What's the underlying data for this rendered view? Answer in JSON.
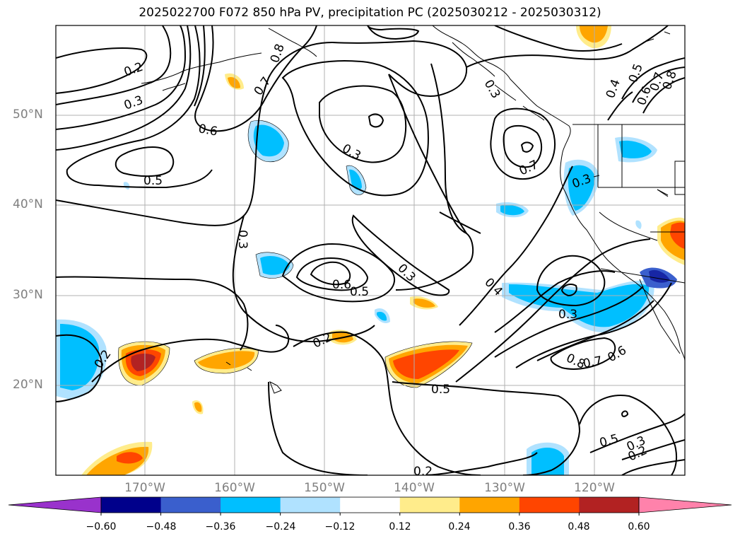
{
  "title": "2025022700 F072 850 hPa PV, precipitation PC (2025030212 - 2025030312)",
  "map": {
    "lat_labels": [
      "50°N",
      "40°N",
      "30°N",
      "20°N"
    ],
    "lon_labels": [
      "170°W",
      "160°W",
      "150°W",
      "140°W",
      "130°W",
      "120°W"
    ],
    "contour_labels": [
      "0.2",
      "0.3",
      "0.5",
      "0.6",
      "0.7",
      "0.8",
      "0.3",
      "0.3",
      "0.6",
      "0.5",
      "0.3",
      "0.4",
      "0.3",
      "0.7",
      "0.3",
      "0.3",
      "0.8",
      "0.7",
      "0.6",
      "0.5",
      "0.2",
      "0.2",
      "0.2",
      "0.5",
      "0.3",
      "0.2",
      "0.4",
      "0.5",
      "0.6",
      "0.7",
      "0.8"
    ],
    "contour_color": "#000000"
  },
  "colorbar": {
    "ticks": [
      "−0.60",
      "−0.48",
      "−0.36",
      "−0.24",
      "−0.12",
      "0.12",
      "0.24",
      "0.36",
      "0.48",
      "0.60"
    ],
    "colors": [
      "#9932cc",
      "#00008b",
      "#3a5fcd",
      "#00bfff",
      "#b0e2ff",
      "#ffffff",
      "#ffec8b",
      "#ffa500",
      "#ff4500",
      "#b22222",
      "#ff82ab"
    ]
  }
}
